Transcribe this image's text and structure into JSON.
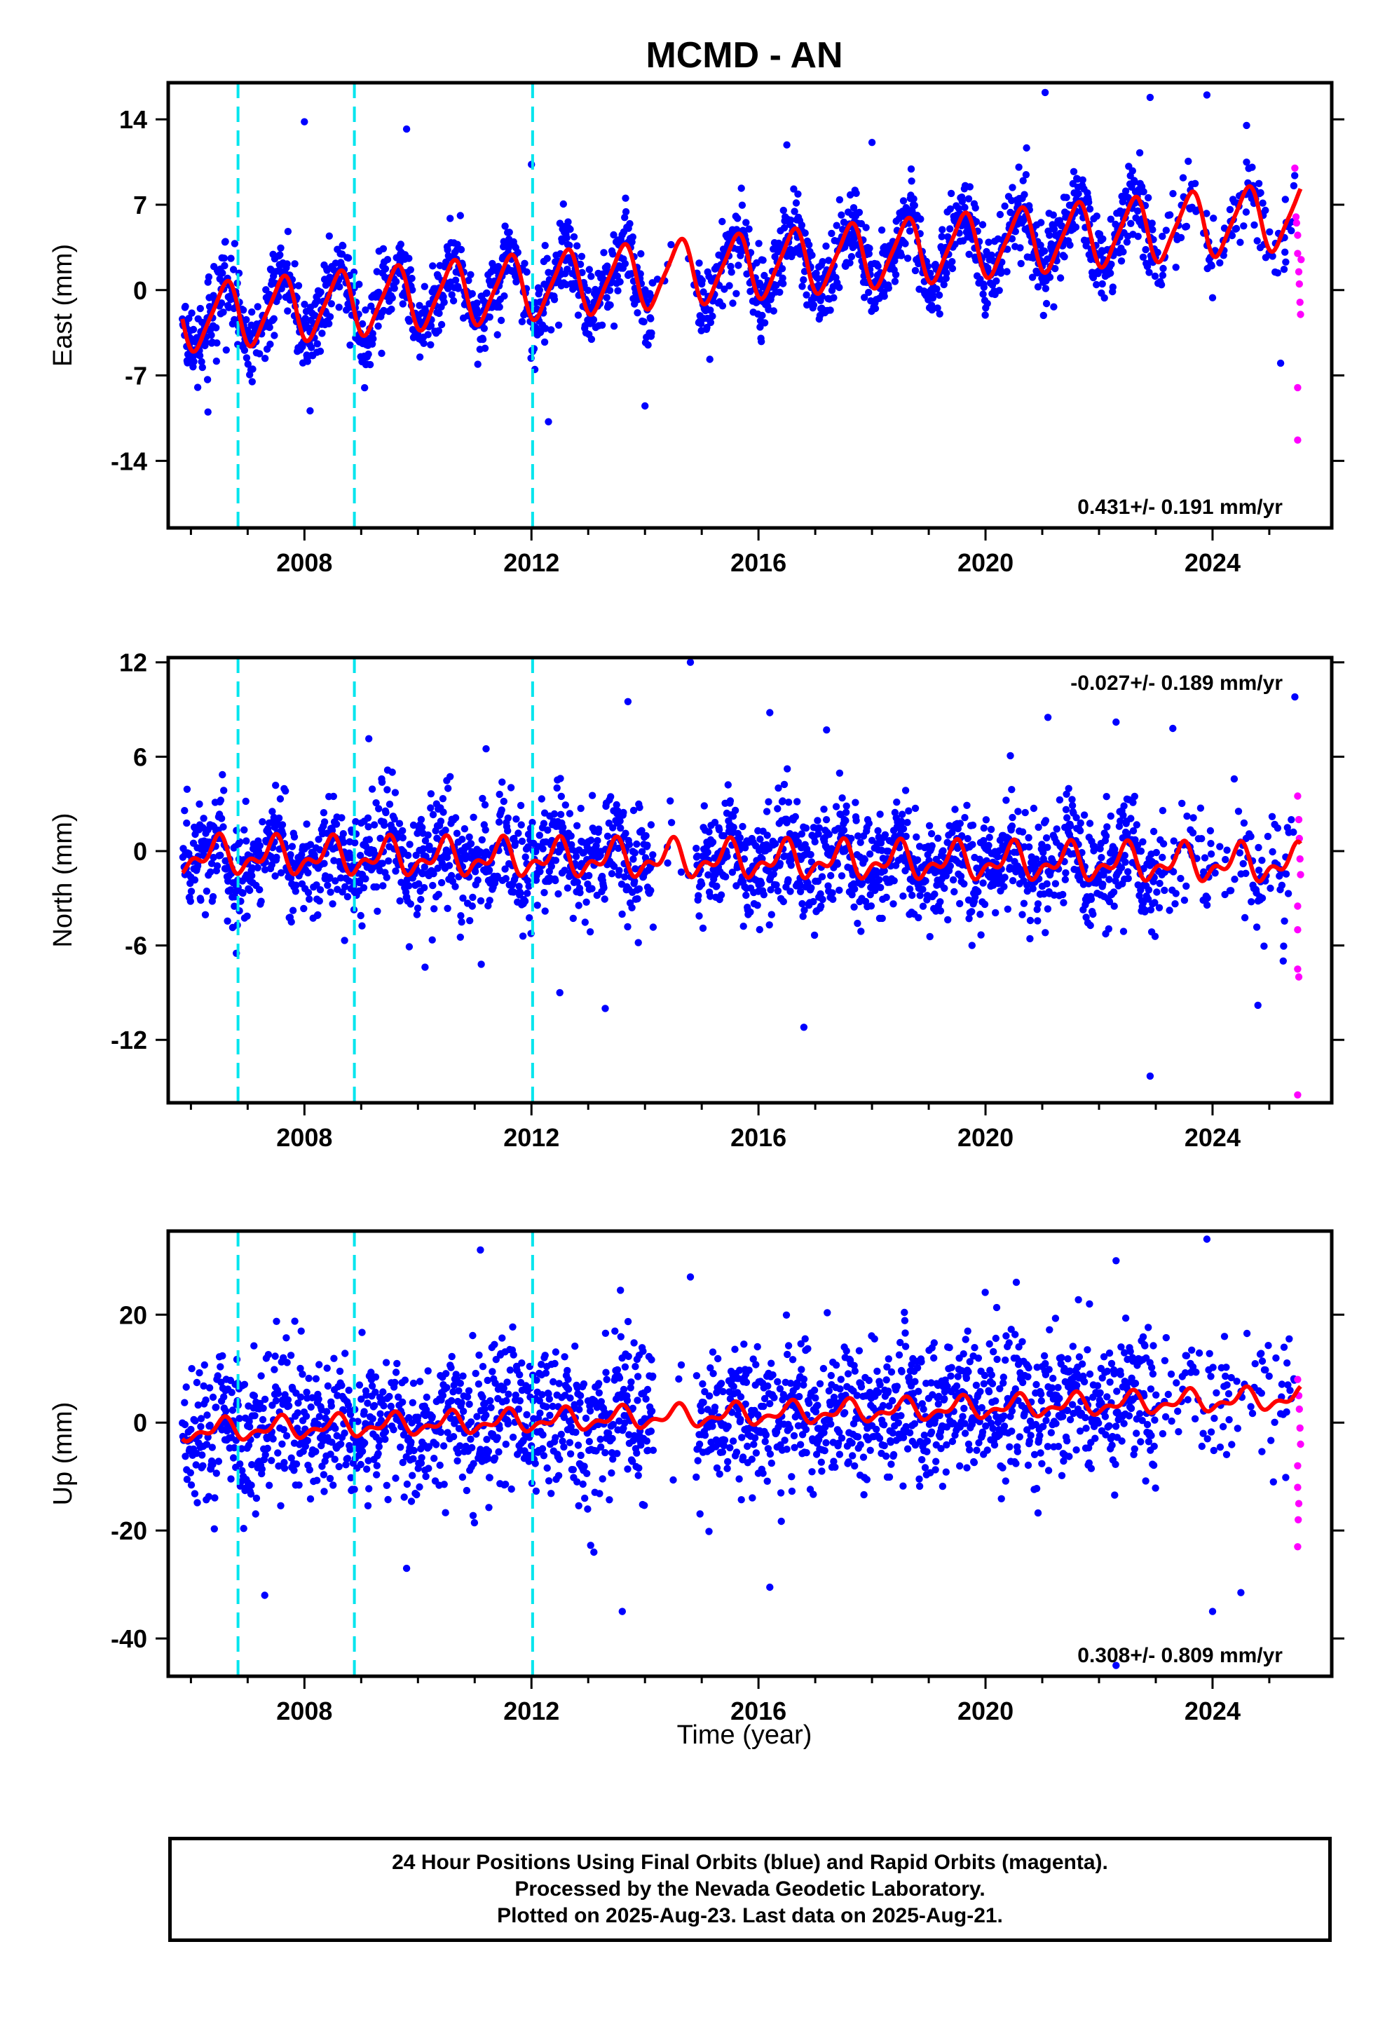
{
  "figure": {
    "title": "MCMD - AN",
    "xlabel": "Time (year)"
  },
  "colors": {
    "final_orbits": "#0000ff",
    "rapid_orbits": "#ff00ff",
    "model_fit": "#ff0000",
    "equipment_change": "#00e5ee"
  },
  "footer": {
    "line1": "24 Hour Positions Using Final Orbits (blue) and Rapid Orbits (magenta).",
    "line2": "Processed by the Nevada Geodetic Laboratory.",
    "line3": "Plotted on 2025-Aug-23. Last data on 2025-Aug-21."
  },
  "chart_data": [
    {
      "type": "scatter",
      "name": "east",
      "ylabel": "East (mm)",
      "xlim": [
        2005.6,
        2026.1
      ],
      "ylim": [
        -19.5,
        17
      ],
      "yticks": [
        14,
        7,
        0,
        -7,
        -14
      ],
      "yticklabels": [
        "14",
        "7",
        "0",
        "-7",
        "-14"
      ],
      "xticks": [
        2008,
        2012,
        2016,
        2020,
        2024
      ],
      "xticklabels": [
        "2008",
        "2012",
        "2016",
        "2020",
        "2024"
      ],
      "rate_text": "0.431+/- 0.191 mm/yr",
      "rate_position": "bottom-right",
      "equipment_changes": [
        2006.83,
        2008.88,
        2012.02
      ],
      "model": {
        "offset": -2.3,
        "trend": 0.431,
        "annual_amp": 2.6,
        "annual_phase": 0.35,
        "semi_amp": 0.5,
        "semi_phase": 0.1,
        "t0": 2006.0
      },
      "scatter_std": 1.6,
      "data_gap": [
        2014.15,
        2014.9
      ],
      "outliers": [
        [
          2008.0,
          13.8
        ],
        [
          2009.8,
          13.2
        ],
        [
          2012.0,
          10.3
        ],
        [
          2012.3,
          -10.8
        ],
        [
          2021.05,
          16.2
        ],
        [
          2022.9,
          15.8
        ],
        [
          2023.9,
          16.0
        ],
        [
          2024.6,
          13.5
        ],
        [
          2016.5,
          11.9
        ],
        [
          2018.0,
          12.1
        ],
        [
          2014.0,
          -9.5
        ],
        [
          2006.3,
          -10.0
        ],
        [
          2008.1,
          -9.9
        ],
        [
          2025.2,
          -6.0
        ]
      ],
      "rapid": [
        [
          2025.45,
          10.0
        ],
        [
          2025.48,
          5.5
        ],
        [
          2025.5,
          4.5
        ],
        [
          2025.5,
          3.0
        ],
        [
          2025.52,
          1.5
        ],
        [
          2025.53,
          0.5
        ],
        [
          2025.54,
          -1.0
        ],
        [
          2025.55,
          -2.0
        ],
        [
          2025.5,
          -8.0
        ],
        [
          2025.5,
          -12.3
        ],
        [
          2025.56,
          2.5
        ],
        [
          2025.47,
          6.0
        ]
      ]
    },
    {
      "type": "scatter",
      "name": "north",
      "ylabel": "North (mm)",
      "xlim": [
        2005.6,
        2026.1
      ],
      "ylim": [
        -16,
        12.3
      ],
      "yticks": [
        12,
        6,
        0,
        -6,
        -12
      ],
      "yticklabels": [
        "12",
        "6",
        "0",
        "-6",
        "-12"
      ],
      "xticks": [
        2008,
        2012,
        2016,
        2020,
        2024
      ],
      "xticklabels": [
        "2008",
        "2012",
        "2016",
        "2020",
        "2024"
      ],
      "rate_text": "-0.027+/- 0.189 mm/yr",
      "rate_position": "top-right",
      "equipment_changes": [
        2006.83,
        2008.88,
        2012.02
      ],
      "model": {
        "offset": -0.3,
        "trend": -0.027,
        "annual_amp": 0.9,
        "annual_phase": 0.2,
        "semi_amp": 0.6,
        "semi_phase": 0.4,
        "t0": 2006.0
      },
      "scatter_std": 1.7,
      "data_gap": [
        2014.15,
        2014.9
      ],
      "outliers": [
        [
          2014.8,
          12.0
        ],
        [
          2013.7,
          9.5
        ],
        [
          2016.2,
          8.8
        ],
        [
          2021.1,
          8.5
        ],
        [
          2022.3,
          8.2
        ],
        [
          2011.2,
          6.5
        ],
        [
          2013.3,
          -10.0
        ],
        [
          2012.5,
          -9.0
        ],
        [
          2016.8,
          -11.2
        ],
        [
          2022.9,
          -14.3
        ],
        [
          2024.8,
          -9.8
        ],
        [
          2006.8,
          -6.5
        ],
        [
          2025.45,
          9.8
        ],
        [
          2017.2,
          7.7
        ],
        [
          2023.3,
          7.8
        ]
      ],
      "rapid": [
        [
          2025.5,
          3.5
        ],
        [
          2025.52,
          2.0
        ],
        [
          2025.53,
          0.8
        ],
        [
          2025.54,
          -0.5
        ],
        [
          2025.55,
          -1.5
        ],
        [
          2025.5,
          -3.5
        ],
        [
          2025.5,
          -5.0
        ],
        [
          2025.5,
          -7.5
        ],
        [
          2025.52,
          -8.0
        ],
        [
          2025.5,
          -15.5
        ]
      ]
    },
    {
      "type": "scatter",
      "name": "up",
      "ylabel": "Up (mm)",
      "xlim": [
        2005.6,
        2026.1
      ],
      "ylim": [
        -47,
        35.5
      ],
      "yticks": [
        20,
        0,
        -20,
        -40
      ],
      "yticklabels": [
        "20",
        "0",
        "-20",
        "-40"
      ],
      "xticks": [
        2008,
        2012,
        2016,
        2020,
        2024
      ],
      "xticklabels": [
        "2008",
        "2012",
        "2016",
        "2020",
        "2024"
      ],
      "rate_text": "0.308+/- 0.809 mm/yr",
      "rate_position": "bottom-right",
      "equipment_changes": [
        2006.83,
        2008.88,
        2012.02
      ],
      "model": {
        "offset": -1.5,
        "trend": 0.308,
        "annual_amp": 1.6,
        "annual_phase": 0.3,
        "semi_amp": 1.0,
        "semi_phase": 0.0,
        "t0": 2006.0
      },
      "scatter_std": 6.8,
      "data_gap": [
        2014.15,
        2014.9
      ],
      "outliers": [
        [
          2011.1,
          32.0
        ],
        [
          2023.9,
          34.0
        ],
        [
          2022.3,
          30.0
        ],
        [
          2014.8,
          27.0
        ],
        [
          2013.6,
          -35.0
        ],
        [
          2007.3,
          -32.0
        ],
        [
          2016.2,
          -30.5
        ],
        [
          2024.0,
          -35.0
        ],
        [
          2024.5,
          -31.5
        ],
        [
          2022.3,
          -45.0
        ],
        [
          2009.8,
          -27.0
        ],
        [
          2013.1,
          -24.0
        ]
      ],
      "rapid": [
        [
          2025.5,
          8.0
        ],
        [
          2025.52,
          5.0
        ],
        [
          2025.53,
          2.5
        ],
        [
          2025.54,
          -1.0
        ],
        [
          2025.55,
          -4.0
        ],
        [
          2025.5,
          -8.0
        ],
        [
          2025.5,
          -12.0
        ],
        [
          2025.51,
          -18.0
        ],
        [
          2025.5,
          -23.0
        ],
        [
          2025.52,
          -15.0
        ]
      ]
    }
  ]
}
